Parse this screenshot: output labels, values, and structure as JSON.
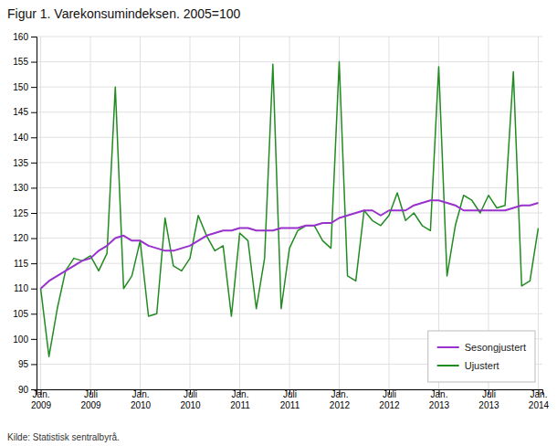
{
  "chart_data": {
    "type": "line",
    "title": "Figur 1. Varekonsumindeksen. 2005=100",
    "source": "Kilde: Statistisk sentralbyrå.",
    "categories": [
      "Jan.\n2009",
      null,
      null,
      null,
      null,
      null,
      "Juli\n2009",
      null,
      null,
      null,
      null,
      null,
      "Jan.\n2010",
      null,
      null,
      null,
      null,
      null,
      "Juli\n2010",
      null,
      null,
      null,
      null,
      null,
      "Jan.\n2011",
      null,
      null,
      null,
      null,
      null,
      "Juli\n2011",
      null,
      null,
      null,
      null,
      null,
      "Jan.\n2012",
      null,
      null,
      null,
      null,
      null,
      "Juli\n2012",
      null,
      null,
      null,
      null,
      null,
      "Jan.\n2013",
      null,
      null,
      null,
      null,
      null,
      "Juli\n2013",
      null,
      null,
      null,
      null,
      null,
      "Jan.\n2014"
    ],
    "series": [
      {
        "name": "Sesongjustert",
        "color": "#9932CC",
        "values": [
          110.0,
          111.5,
          112.5,
          113.5,
          114.5,
          115.5,
          116.0,
          117.5,
          118.5,
          120.0,
          120.5,
          119.5,
          119.5,
          118.5,
          118.0,
          117.5,
          117.5,
          118.0,
          118.5,
          119.5,
          120.5,
          121.0,
          121.5,
          121.5,
          122.0,
          122.0,
          121.5,
          121.5,
          121.5,
          122.0,
          122.0,
          122.0,
          122.5,
          122.5,
          123.0,
          123.0,
          124.0,
          124.5,
          125.0,
          125.5,
          125.5,
          124.5,
          125.5,
          125.5,
          125.5,
          126.5,
          127.0,
          127.5,
          127.5,
          127.0,
          126.5,
          125.5,
          125.5,
          125.5,
          125.5,
          125.5,
          125.5,
          126.0,
          126.5,
          126.5,
          127.0
        ]
      },
      {
        "name": "Ujustert",
        "color": "#228B22",
        "values": [
          110.0,
          96.5,
          106.0,
          113.5,
          116.0,
          115.5,
          116.5,
          113.5,
          117.0,
          150.0,
          110.0,
          112.5,
          119.5,
          104.5,
          105.0,
          124.0,
          114.5,
          113.5,
          116.0,
          124.5,
          120.5,
          117.5,
          118.5,
          104.5,
          121.0,
          119.5,
          106.0,
          116.0,
          154.5,
          106.0,
          118.0,
          121.5,
          122.5,
          122.5,
          119.5,
          118.0,
          155.0,
          112.5,
          111.5,
          125.5,
          123.5,
          122.5,
          124.5,
          129.0,
          123.5,
          125.0,
          122.5,
          121.5,
          154.0,
          112.5,
          122.5,
          128.5,
          127.5,
          125.0,
          128.5,
          126.0,
          126.5,
          153.0,
          110.5,
          111.5,
          122.0
        ]
      }
    ],
    "ylim": [
      90,
      160
    ],
    "yticks": [
      90,
      95,
      100,
      105,
      110,
      115,
      120,
      125,
      130,
      135,
      140,
      145,
      150,
      155,
      160
    ],
    "grid": true,
    "legend": "lower right"
  }
}
